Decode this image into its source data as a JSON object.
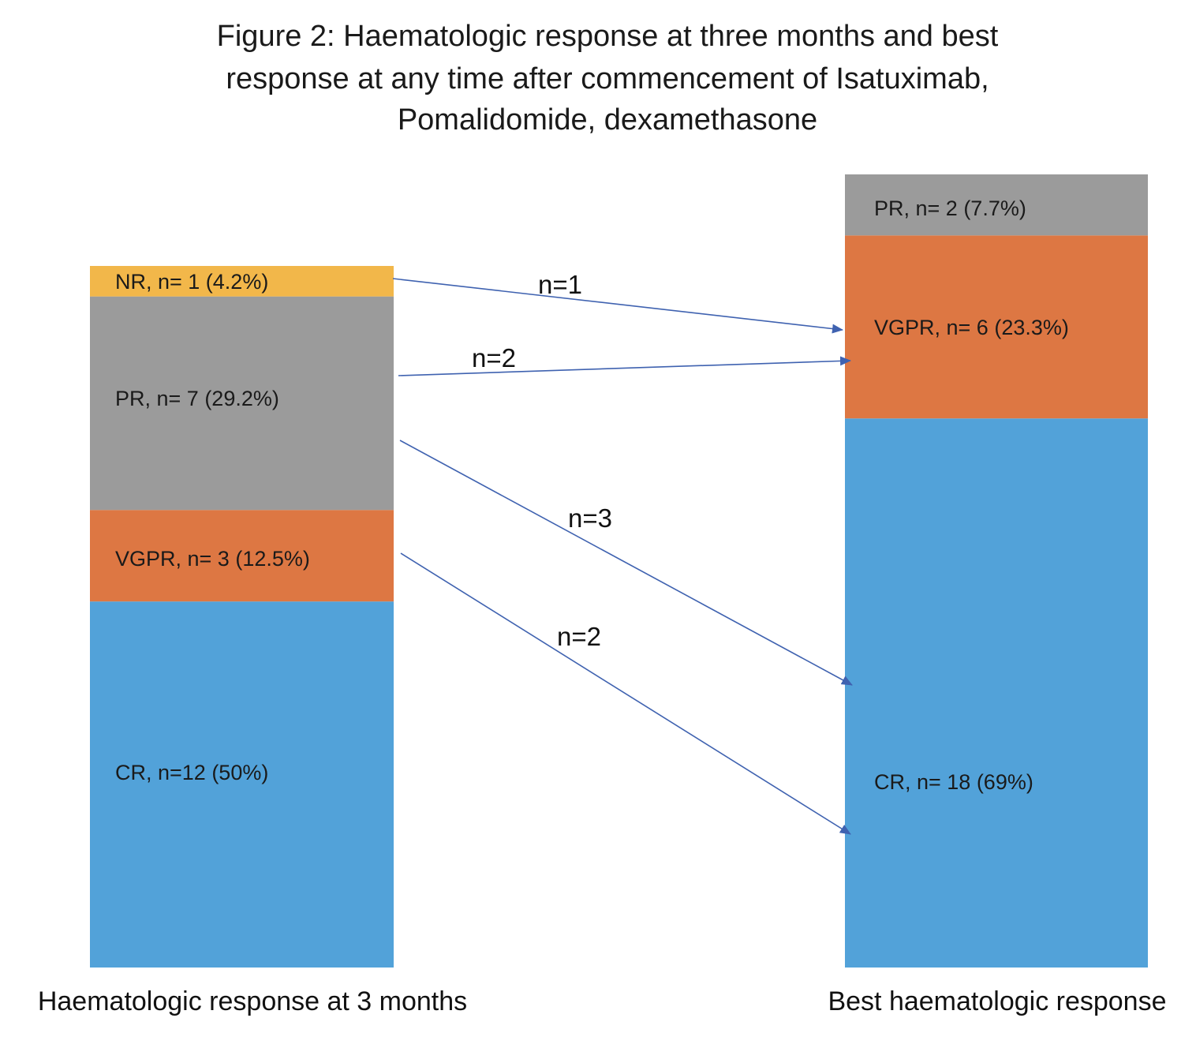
{
  "chart_data": {
    "type": "bar",
    "title_lines": [
      "Figure 2: Haematologic response at three months and best",
      "response at any time after commencement of Isatuximab,",
      "Pomalidomide, dexamethasone"
    ],
    "bars": [
      {
        "label": "Haematologic response at 3 months",
        "segments": [
          {
            "category": "CR",
            "n": 12,
            "percent": 50,
            "text": "CR, n=12 (50%)",
            "color": "#52A2D9"
          },
          {
            "category": "VGPR",
            "n": 3,
            "percent": 12.5,
            "text": "VGPR, n= 3 (12.5%)",
            "color": "#DD7743"
          },
          {
            "category": "PR",
            "n": 7,
            "percent": 29.2,
            "text": "PR, n= 7 (29.2%)",
            "color": "#9B9B9B"
          },
          {
            "category": "NR",
            "n": 1,
            "percent": 4.2,
            "text": "NR, n= 1 (4.2%)",
            "color": "#F2B74A"
          }
        ]
      },
      {
        "label": "Best haematologic response",
        "segments": [
          {
            "category": "CR",
            "n": 18,
            "percent": 69,
            "text": "CR, n= 18 (69%)",
            "color": "#52A2D9"
          },
          {
            "category": "VGPR",
            "n": 6,
            "percent": 23.3,
            "text": "VGPR, n= 6 (23.3%)",
            "color": "#DD7743"
          },
          {
            "category": "PR",
            "n": 2,
            "percent": 7.7,
            "text": "PR, n= 2 (7.7%)",
            "color": "#9B9B9B"
          }
        ]
      }
    ],
    "flows": [
      {
        "from": "NR",
        "to": "VGPR",
        "n": 1,
        "text": "n=1"
      },
      {
        "from": "PR",
        "to": "VGPR",
        "n": 2,
        "text": "n=2"
      },
      {
        "from": "PR",
        "to": "CR",
        "n": 3,
        "text": "n=3"
      },
      {
        "from": "VGPR",
        "to": "CR",
        "n": 2,
        "text": "n=2"
      }
    ],
    "arrow_color": "#3F62B0",
    "legend": "none",
    "grid": false
  }
}
